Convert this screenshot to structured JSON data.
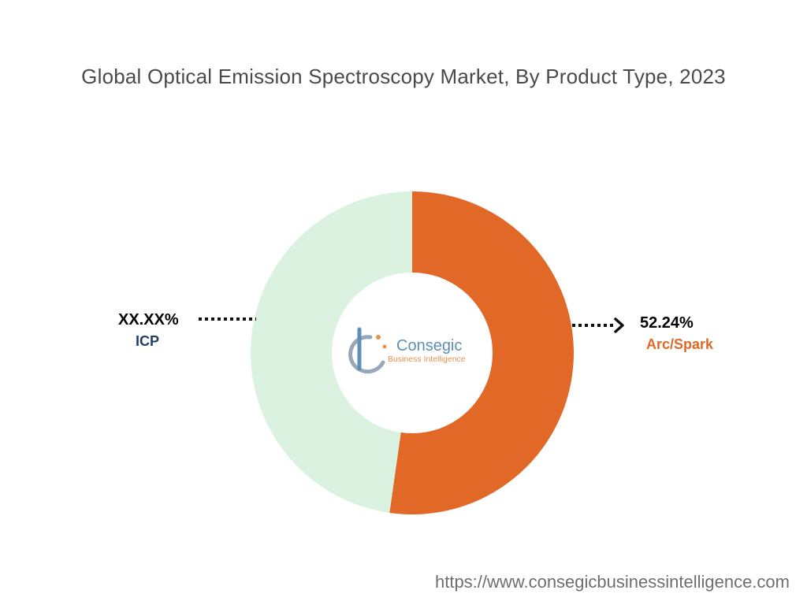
{
  "title": "Global Optical Emission Spectroscopy Market, By Product Type, 2023",
  "footer_url": "https://www.consegicbusinessintelligence.com",
  "logo": {
    "name": "Consegic",
    "tagline": "Business Intelligence"
  },
  "chart_data": {
    "type": "pie",
    "variant": "donut",
    "title": "Global Optical Emission Spectroscopy Market, By Product Type, 2023",
    "slices": [
      {
        "category": "Arc/Spark",
        "value": 52.24,
        "label": "52.24%",
        "color": "#e26828"
      },
      {
        "category": "ICP",
        "value": 47.76,
        "label": "XX.XX%",
        "color": "#dbf2e0"
      }
    ],
    "label_colors": {
      "ICP": "#1f3f66",
      "Arc/Spark": "#e26828"
    },
    "legend": "none"
  }
}
